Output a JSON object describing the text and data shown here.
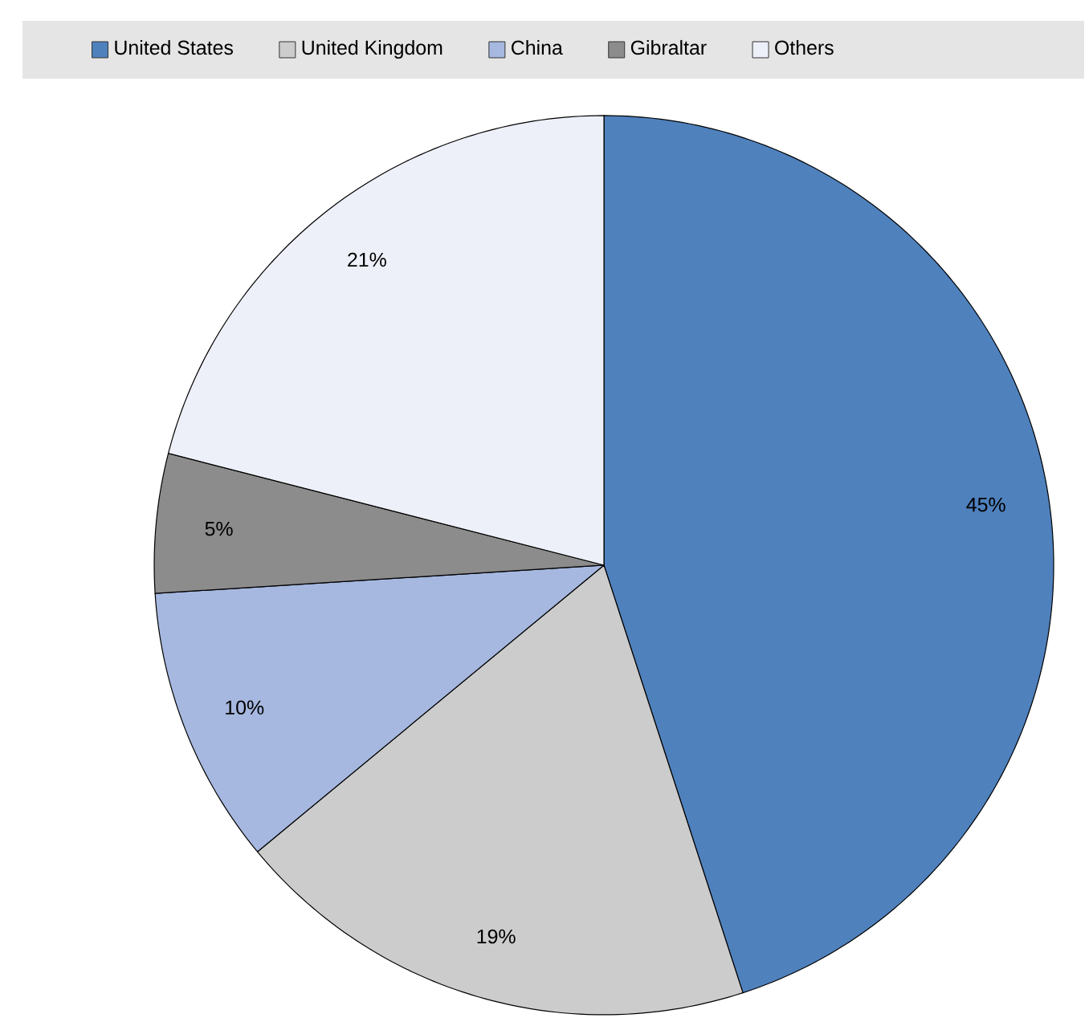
{
  "chart_data": {
    "type": "pie",
    "categories": [
      "United States",
      "United Kingdom",
      "China",
      "Gibraltar",
      "Others"
    ],
    "values": [
      45,
      19,
      10,
      5,
      21
    ],
    "colors": [
      "#4f81bd",
      "#cccccc",
      "#a6b8e0",
      "#8c8c8c",
      "#edf0f8"
    ],
    "value_labels": [
      "45%",
      "19%",
      "10%",
      "5%",
      "21%"
    ],
    "legend": "top"
  }
}
